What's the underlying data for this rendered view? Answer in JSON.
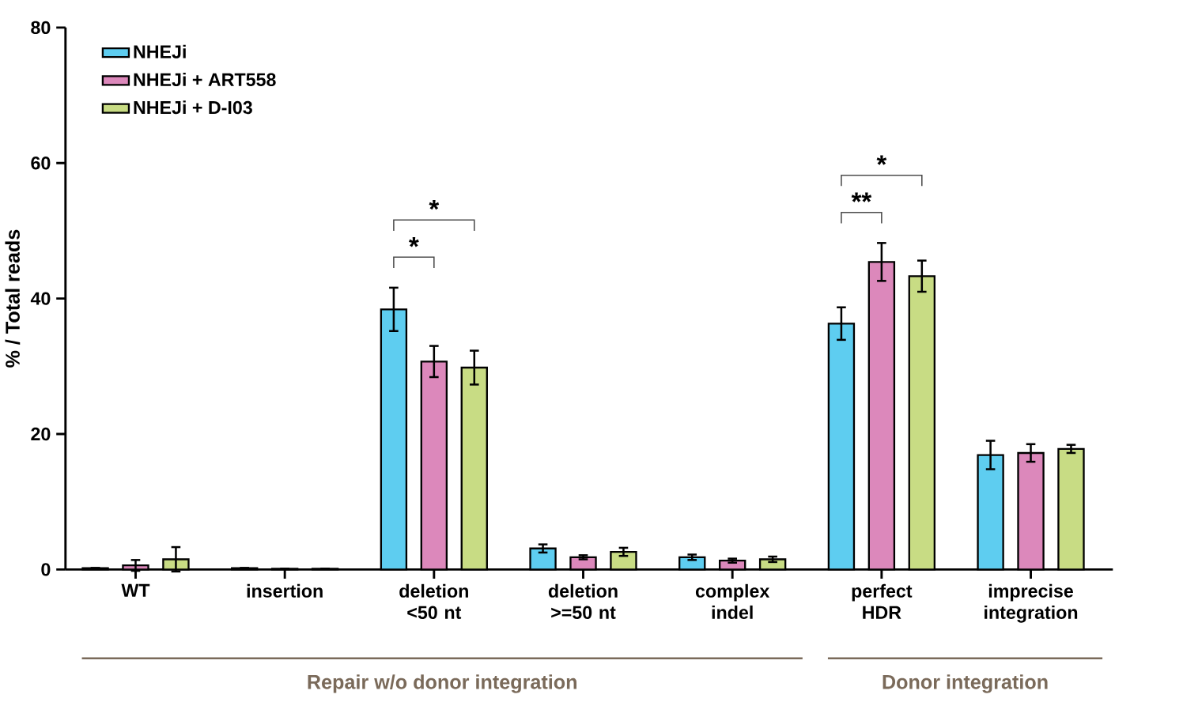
{
  "chart_data": {
    "type": "bar",
    "ylabel": "% / Total reads",
    "categories": [
      "WT",
      "insertion",
      "deletion <50 nt",
      "deletion >=50 nt",
      "complex indel",
      "perfect HDR",
      "imprecise integration"
    ],
    "series": [
      {
        "name": "NHEJi",
        "color": "#5ecdf0",
        "values": [
          0.2,
          0.2,
          38.4,
          3.1,
          1.8,
          36.3,
          16.9
        ],
        "errors": [
          null,
          null,
          3.2,
          0.6,
          0.4,
          2.4,
          2.1
        ]
      },
      {
        "name": "NHEJi + ART558",
        "color": "#dc88bb",
        "values": [
          0.6,
          0.1,
          30.7,
          1.8,
          1.3,
          45.4,
          17.2
        ],
        "errors": [
          0.8,
          null,
          2.3,
          0.3,
          0.3,
          2.8,
          1.3
        ]
      },
      {
        "name": "NHEJi + D-I03",
        "color": "#c8dc84",
        "values": [
          1.5,
          0.1,
          29.8,
          2.6,
          1.5,
          43.3,
          17.8
        ],
        "errors": [
          1.8,
          null,
          2.5,
          0.6,
          0.4,
          2.3,
          0.6
        ]
      }
    ],
    "ylim": [
      0,
      80
    ],
    "yticks": [
      0,
      20,
      40,
      60,
      80
    ],
    "grid": false,
    "legend": "top left",
    "annotations": [
      "*",
      "*",
      "**",
      "*",
      "Repair w/o donor integration",
      "Donor integration"
    ]
  }
}
